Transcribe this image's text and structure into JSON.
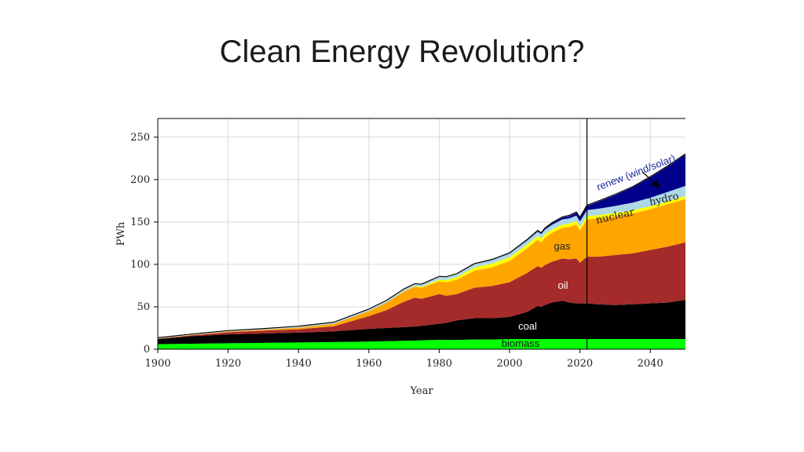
{
  "slide": {
    "title": "Clean Energy Revolution?"
  },
  "chart_data": {
    "type": "area",
    "stacked": true,
    "xlabel": "Year",
    "ylabel": "PWh",
    "xlim": [
      1900,
      2050
    ],
    "ylim": [
      0,
      272
    ],
    "xticks": [
      1900,
      1920,
      1940,
      1960,
      1980,
      2000,
      2020,
      2040
    ],
    "yticks": [
      0,
      50,
      100,
      150,
      200,
      250
    ],
    "grid": true,
    "vline_year": 2022,
    "x": [
      1900,
      1910,
      1920,
      1930,
      1940,
      1950,
      1960,
      1965,
      1970,
      1973,
      1975,
      1980,
      1982,
      1985,
      1990,
      1995,
      2000,
      2005,
      2008,
      2009,
      2010,
      2012,
      2015,
      2017,
      2019,
      2020,
      2022,
      2025,
      2030,
      2035,
      2040,
      2045,
      2050
    ],
    "series": [
      {
        "name": "biomass",
        "color": "#00ff00",
        "values": [
          6,
          6.5,
          7,
          7.5,
          8,
          8.5,
          9,
          9.5,
          10,
          10.2,
          10.5,
          11,
          11,
          11,
          11.5,
          11.5,
          12,
          12,
          12,
          12,
          12,
          12,
          12,
          12,
          12,
          12,
          12,
          12,
          12,
          12,
          12,
          12,
          12
        ]
      },
      {
        "name": "coal",
        "color": "#000000",
        "values": [
          6,
          9,
          10.5,
          11,
          11.5,
          12.5,
          15,
          15.5,
          16,
          16.5,
          17,
          19,
          20,
          23,
          25,
          25,
          26,
          32,
          39,
          38,
          40,
          43,
          45,
          43,
          42,
          42,
          42,
          41,
          40,
          41,
          42,
          43,
          46
        ]
      },
      {
        "name": "oil",
        "color": "#a52a2a",
        "values": [
          0.3,
          1,
          2.5,
          3.5,
          4,
          6,
          15,
          21,
          30,
          34,
          32,
          35,
          32,
          31,
          36,
          38,
          41,
          46,
          47,
          46,
          47,
          48,
          50,
          51,
          53,
          48,
          55,
          56,
          59,
          60,
          63,
          66,
          68
        ]
      },
      {
        "name": "gas",
        "color": "#ffa500",
        "values": [
          0.3,
          0.5,
          0.8,
          1,
          2,
          3,
          6,
          9,
          12,
          13,
          13,
          15,
          16,
          17,
          20,
          22,
          25,
          29,
          31,
          30,
          32,
          34,
          36,
          38,
          40,
          38,
          44,
          45,
          46,
          47,
          48,
          50,
          51
        ]
      },
      {
        "name": "nuclear",
        "color": "#ffff00",
        "values": [
          0,
          0,
          0,
          0,
          0,
          0,
          0,
          0,
          0.3,
          0.5,
          1,
          2,
          2.5,
          3,
          4,
          4.5,
          4.5,
          4.5,
          4.5,
          4.5,
          4.5,
          4,
          4,
          4,
          4,
          4,
          4,
          4,
          3.8,
          3.8,
          3.6,
          3.5,
          3.5
        ]
      },
      {
        "name": "hydro",
        "color": "#add8e6",
        "values": [
          0.1,
          0.2,
          0.3,
          0.5,
          0.8,
          1,
          1.5,
          1.8,
          2,
          2.2,
          2.4,
          3,
          3.1,
          3.3,
          3.5,
          3.8,
          4,
          4.5,
          5,
          5,
          5.2,
          5.5,
          6,
          6.3,
          6.5,
          6.6,
          7,
          7.5,
          8,
          9,
          10,
          11,
          12
        ]
      },
      {
        "name": "renew (wind/solar)",
        "color": "#00008b",
        "values": [
          0,
          0,
          0,
          0,
          0,
          0,
          0,
          0,
          0,
          0,
          0,
          0,
          0,
          0,
          0.1,
          0.2,
          0.3,
          0.5,
          0.8,
          1,
          1.2,
          1.6,
          2.2,
          2.8,
          3.5,
          4,
          5,
          8,
          13,
          18,
          24,
          30,
          37
        ]
      }
    ],
    "labels": {
      "biomass": "biomass",
      "coal": "coal",
      "oil": "oil",
      "gas": "gas",
      "nuclear": "nuclear",
      "hydro": "hydro",
      "renew": "renew (wind/solar)"
    }
  }
}
